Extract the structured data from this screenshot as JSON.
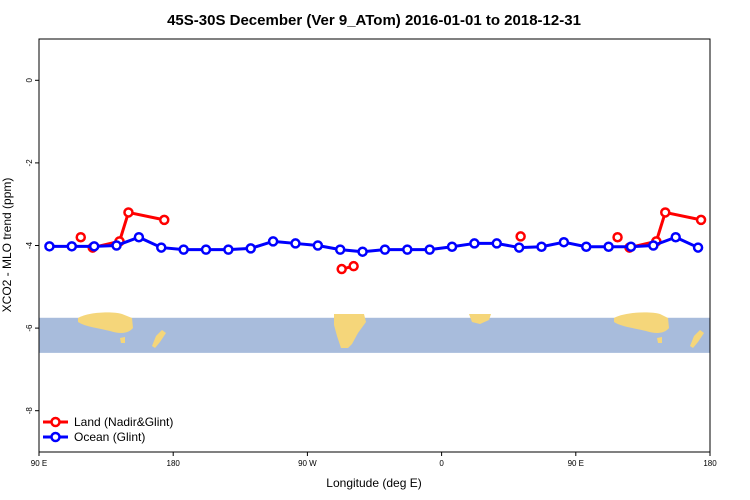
{
  "chart_data": {
    "type": "line",
    "title": "45S-30S December (Ver 9_ATom)   2016-01-01 to 2018-12-31",
    "xlabel": "Longitude (deg E)",
    "ylabel": "XCO2 - MLO trend (ppm)",
    "xlim": [
      90,
      540
    ],
    "ylim": [
      -9,
      1
    ],
    "x_ticks": [
      {
        "value": 90,
        "label": "90 E"
      },
      {
        "value": 180,
        "label": "180"
      },
      {
        "value": 270,
        "label": "90 W"
      },
      {
        "value": 360,
        "label": "0"
      },
      {
        "value": 450,
        "label": "90 E"
      },
      {
        "value": 540,
        "label": "180"
      }
    ],
    "y_ticks": [
      {
        "value": 0,
        "label": "0"
      },
      {
        "value": -2,
        "label": "-2"
      },
      {
        "value": -4,
        "label": "-4"
      },
      {
        "value": -6,
        "label": "-6"
      },
      {
        "value": -8,
        "label": "-8"
      }
    ],
    "colors": {
      "land": "#ff0000",
      "ocean": "#0000ff",
      "map_ocean": "#a8bcdc",
      "map_land": "#f5d67a"
    },
    "map_strip": {
      "y_top": -5.75,
      "y_bottom": -6.6
    },
    "legend_position": "bottom-left",
    "series": [
      {
        "name": "Land (Nadir&Glint)",
        "key": "land",
        "segments": [
          [
            [
              118,
              -3.8
            ]
          ],
          [
            [
              126,
              -4.05
            ],
            [
              144,
              -3.9
            ],
            [
              150,
              -3.2
            ],
            [
              174,
              -3.38
            ]
          ],
          [
            [
              293,
              -4.57
            ],
            [
              301,
              -4.5
            ]
          ],
          [
            [
              413,
              -3.78
            ]
          ],
          [
            [
              478,
              -3.8
            ]
          ],
          [
            [
              486,
              -4.05
            ],
            [
              504,
              -3.9
            ],
            [
              510,
              -3.2
            ],
            [
              534,
              -3.38
            ]
          ]
        ]
      },
      {
        "name": "Ocean (Glint)",
        "key": "ocean",
        "segments": [
          [
            [
              97,
              -4.02
            ],
            [
              112,
              -4.02
            ],
            [
              127,
              -4.02
            ],
            [
              142,
              -4.0
            ],
            [
              157,
              -3.8
            ],
            [
              172,
              -4.05
            ],
            [
              187,
              -4.1
            ],
            [
              202,
              -4.1
            ],
            [
              217,
              -4.1
            ],
            [
              232,
              -4.07
            ],
            [
              247,
              -3.9
            ],
            [
              262,
              -3.95
            ],
            [
              277,
              -4.0
            ],
            [
              292,
              -4.1
            ],
            [
              307,
              -4.15
            ],
            [
              322,
              -4.1
            ],
            [
              337,
              -4.1
            ],
            [
              352,
              -4.1
            ],
            [
              367,
              -4.03
            ],
            [
              382,
              -3.95
            ],
            [
              397,
              -3.95
            ],
            [
              412,
              -4.05
            ],
            [
              427,
              -4.03
            ],
            [
              442,
              -3.92
            ],
            [
              457,
              -4.03
            ],
            [
              472,
              -4.03
            ],
            [
              487,
              -4.03
            ],
            [
              502,
              -4.0
            ],
            [
              517,
              -3.8
            ],
            [
              532,
              -4.05
            ]
          ]
        ]
      }
    ]
  }
}
